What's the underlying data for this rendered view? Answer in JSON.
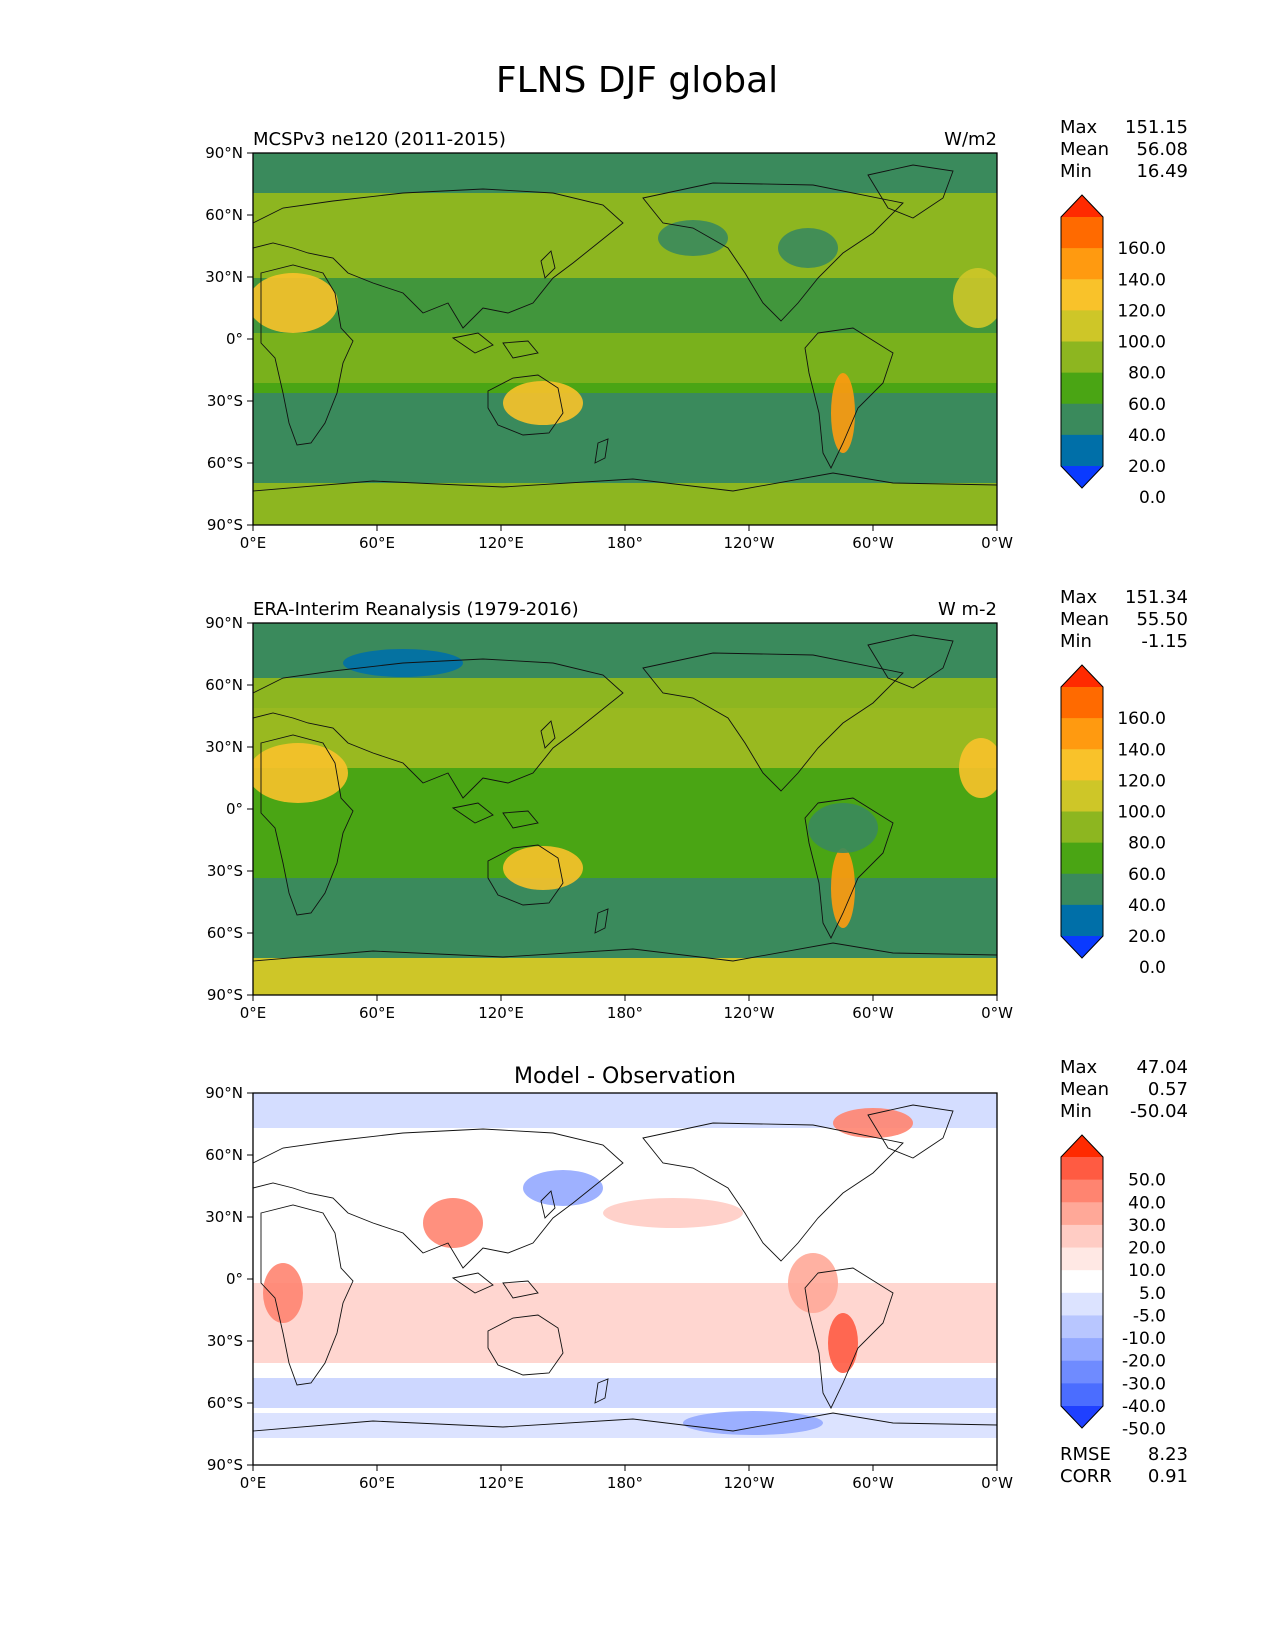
{
  "figure": {
    "title": "FLNS DJF global"
  },
  "axis_ticks": {
    "lat": [
      "90°N",
      "60°N",
      "30°N",
      "0°",
      "30°S",
      "60°S",
      "90°S"
    ],
    "lon": [
      "0°E",
      "60°E",
      "120°E",
      "180°",
      "120°W",
      "60°W",
      "0°W"
    ]
  },
  "panels": [
    {
      "left_title": "MCSPv3 ne120 (2011-2015)",
      "center_title": "",
      "units": "W/m2",
      "stats": [
        {
          "label": "Max",
          "value": "151.15"
        },
        {
          "label": "Mean",
          "value": "56.08"
        },
        {
          "label": "Min",
          "value": "16.49"
        }
      ],
      "colorbar": {
        "labels": [
          "160.0",
          "140.0",
          "120.0",
          "100.0",
          "80.0",
          "60.0",
          "40.0",
          "20.0",
          "0.0"
        ],
        "colors": [
          "#ff2a00",
          "#ff6a00",
          "#ff9a10",
          "#f9c22a",
          "#cec628",
          "#8db620",
          "#4aa514",
          "#3a8a5c",
          "#006fa8",
          "#0a3aff"
        ]
      }
    },
    {
      "left_title": "ERA-Interim Reanalysis (1979-2016)",
      "center_title": "",
      "units": "W m-2",
      "stats": [
        {
          "label": "Max",
          "value": "151.34"
        },
        {
          "label": "Mean",
          "value": "55.50"
        },
        {
          "label": "Min",
          "value": "-1.15"
        }
      ],
      "colorbar": {
        "labels": [
          "160.0",
          "140.0",
          "120.0",
          "100.0",
          "80.0",
          "60.0",
          "40.0",
          "20.0",
          "0.0"
        ],
        "colors": [
          "#ff2a00",
          "#ff6a00",
          "#ff9a10",
          "#f9c22a",
          "#cec628",
          "#8db620",
          "#4aa514",
          "#3a8a5c",
          "#006fa8",
          "#0a3aff"
        ]
      }
    },
    {
      "left_title": "",
      "center_title": "Model - Observation",
      "units": "",
      "stats": [
        {
          "label": "Max",
          "value": "47.04"
        },
        {
          "label": "Mean",
          "value": "0.57"
        },
        {
          "label": "Min",
          "value": "-50.04"
        }
      ],
      "colorbar": {
        "labels": [
          "50.0",
          "40.0",
          "30.0",
          "20.0",
          "10.0",
          "5.0",
          "-5.0",
          "-10.0",
          "-20.0",
          "-30.0",
          "-40.0",
          "-50.0"
        ],
        "colors": [
          "#ff2a00",
          "#ff5b42",
          "#ff8470",
          "#ffa898",
          "#ffccc4",
          "#ffe8e4",
          "#ffffff",
          "#dce3ff",
          "#b8c6ff",
          "#94a9ff",
          "#6f8bff",
          "#4b6dff",
          "#1f40ff"
        ]
      },
      "metrics": [
        {
          "label": "RMSE",
          "value": "8.23"
        },
        {
          "label": "CORR",
          "value": "0.91"
        }
      ]
    }
  ]
}
